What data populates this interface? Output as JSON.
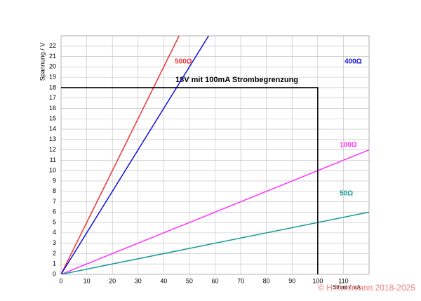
{
  "chart_data": {
    "type": "line",
    "xlabel": "Strom / mA",
    "ylabel": "Spannung / V",
    "xlim": [
      0,
      120
    ],
    "xticks": [
      0,
      10,
      20,
      30,
      40,
      50,
      60,
      70,
      80,
      90,
      100,
      110
    ],
    "ylim": [
      0,
      23
    ],
    "yticks": [
      0,
      1,
      2,
      3,
      4,
      5,
      6,
      7,
      8,
      9,
      10,
      11,
      12,
      13,
      14,
      15,
      16,
      17,
      18,
      19,
      20,
      21,
      22
    ],
    "grid": true,
    "series": [
      {
        "name": "500Ω",
        "color": "#ee3333",
        "x": [
          0,
          46
        ],
        "values": [
          0,
          23
        ]
      },
      {
        "name": "400Ω",
        "color": "#1111dd",
        "x": [
          0,
          57.5
        ],
        "values": [
          0,
          23
        ]
      },
      {
        "name": "100Ω",
        "color": "#ff33ff",
        "x": [
          0,
          120
        ],
        "values": [
          0,
          12
        ]
      },
      {
        "name": "50Ω",
        "color": "#119999",
        "x": [
          0,
          120
        ],
        "values": [
          0,
          6
        ]
      }
    ],
    "annotation": {
      "text": "18V mit 100mA Strombegrenzung",
      "x": [
        0,
        100,
        100
      ],
      "values": [
        18,
        18,
        0
      ]
    },
    "watermark": "© H.Kuhlmann 2018-2025"
  }
}
